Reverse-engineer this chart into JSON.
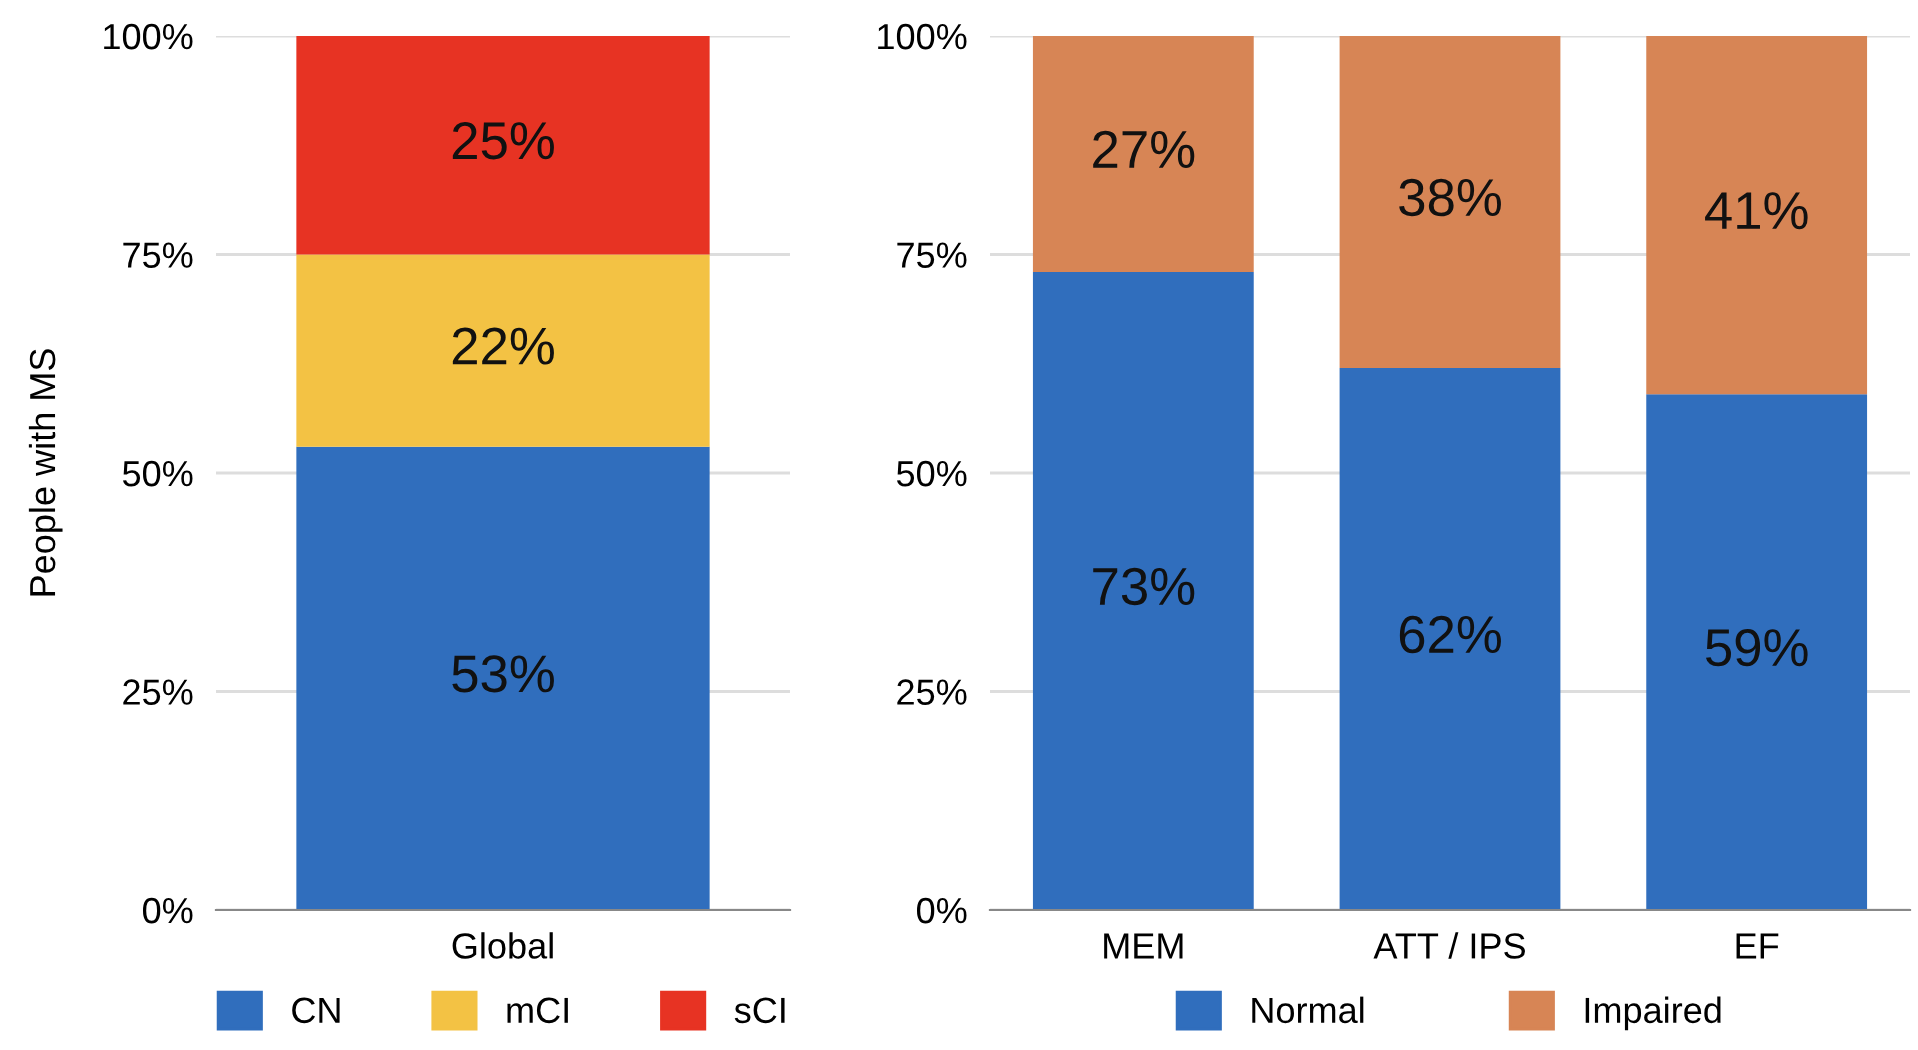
{
  "chart_data": [
    {
      "type": "bar",
      "stacked": true,
      "ylabel": "People with MS",
      "categories": [
        "Global"
      ],
      "ylim": [
        0,
        100
      ],
      "yticks": [
        {
          "value": 0,
          "label": "0%"
        },
        {
          "value": 25,
          "label": "25%"
        },
        {
          "value": 50,
          "label": "50%"
        },
        {
          "value": 75,
          "label": "75%"
        },
        {
          "value": 100,
          "label": "100%"
        }
      ],
      "grid": "y",
      "legend": "bottom",
      "series": [
        {
          "name": "CN",
          "color": "#306ebd",
          "values": [
            53
          ],
          "value_labels": [
            "53%"
          ]
        },
        {
          "name": "mCI",
          "color": "#f3c244",
          "values": [
            22
          ],
          "value_labels": [
            "22%"
          ]
        },
        {
          "name": "sCI",
          "color": "#e73323",
          "values": [
            25
          ],
          "value_labels": [
            "25%"
          ]
        }
      ]
    },
    {
      "type": "bar",
      "stacked": true,
      "categories": [
        "MEM",
        "ATT / IPS",
        "EF"
      ],
      "ylim": [
        0,
        100
      ],
      "yticks": [
        {
          "value": 0,
          "label": "0%"
        },
        {
          "value": 25,
          "label": "25%"
        },
        {
          "value": 50,
          "label": "50%"
        },
        {
          "value": 75,
          "label": "75%"
        },
        {
          "value": 100,
          "label": "100%"
        }
      ],
      "grid": "y",
      "legend": "bottom",
      "series": [
        {
          "name": "Normal",
          "color": "#306ebd",
          "values": [
            73,
            62,
            59
          ],
          "value_labels": [
            "73%",
            "62%",
            "59%"
          ]
        },
        {
          "name": "Impaired",
          "color": "#d78555",
          "values": [
            27,
            38,
            41
          ],
          "value_labels": [
            "27%",
            "38%",
            "41%"
          ]
        }
      ]
    }
  ]
}
